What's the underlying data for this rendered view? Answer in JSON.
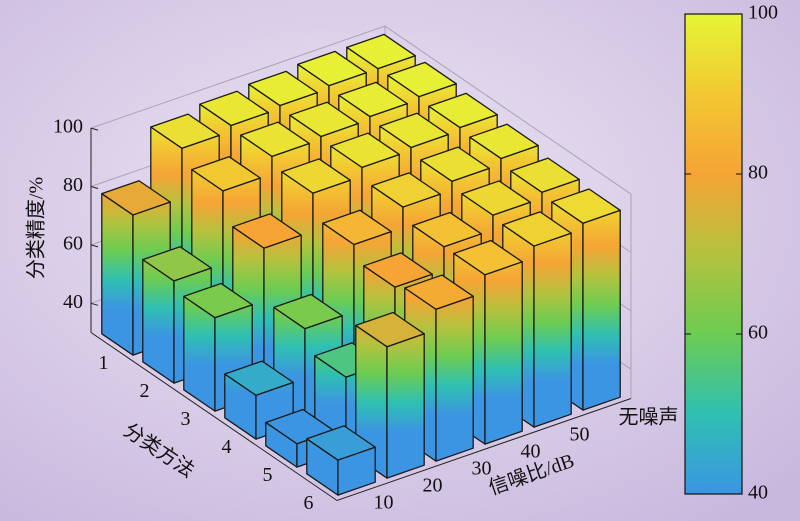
{
  "chart_data": {
    "type": "bar3d",
    "z_label": "分类精度/%",
    "y_label": "分类方法",
    "x_label": "信噪比/dB",
    "x_categories": [
      "10",
      "20",
      "30",
      "40",
      "50",
      "无噪声"
    ],
    "y_categories": [
      "1",
      "2",
      "3",
      "4",
      "5",
      "6"
    ],
    "values": [
      [
        78,
        95,
        97,
        98,
        99,
        99
      ],
      [
        65,
        90,
        96,
        97,
        98,
        99
      ],
      [
        62,
        80,
        93,
        96,
        97,
        98
      ],
      [
        45,
        62,
        85,
        92,
        95,
        97
      ],
      [
        38,
        55,
        80,
        88,
        93,
        95
      ],
      [
        42,
        75,
        82,
        88,
        92,
        94
      ]
    ],
    "zlim": [
      30,
      100
    ],
    "zticks": [
      40,
      60,
      80,
      100
    ],
    "colorbar": {
      "lim": [
        40,
        100
      ],
      "ticks": [
        40,
        60,
        80,
        100
      ],
      "colormap": [
        "#3b95e2",
        "#2fc0b2",
        "#6ccc52",
        "#b4c23e",
        "#f5a435",
        "#f2c832",
        "#e6f535"
      ]
    }
  }
}
